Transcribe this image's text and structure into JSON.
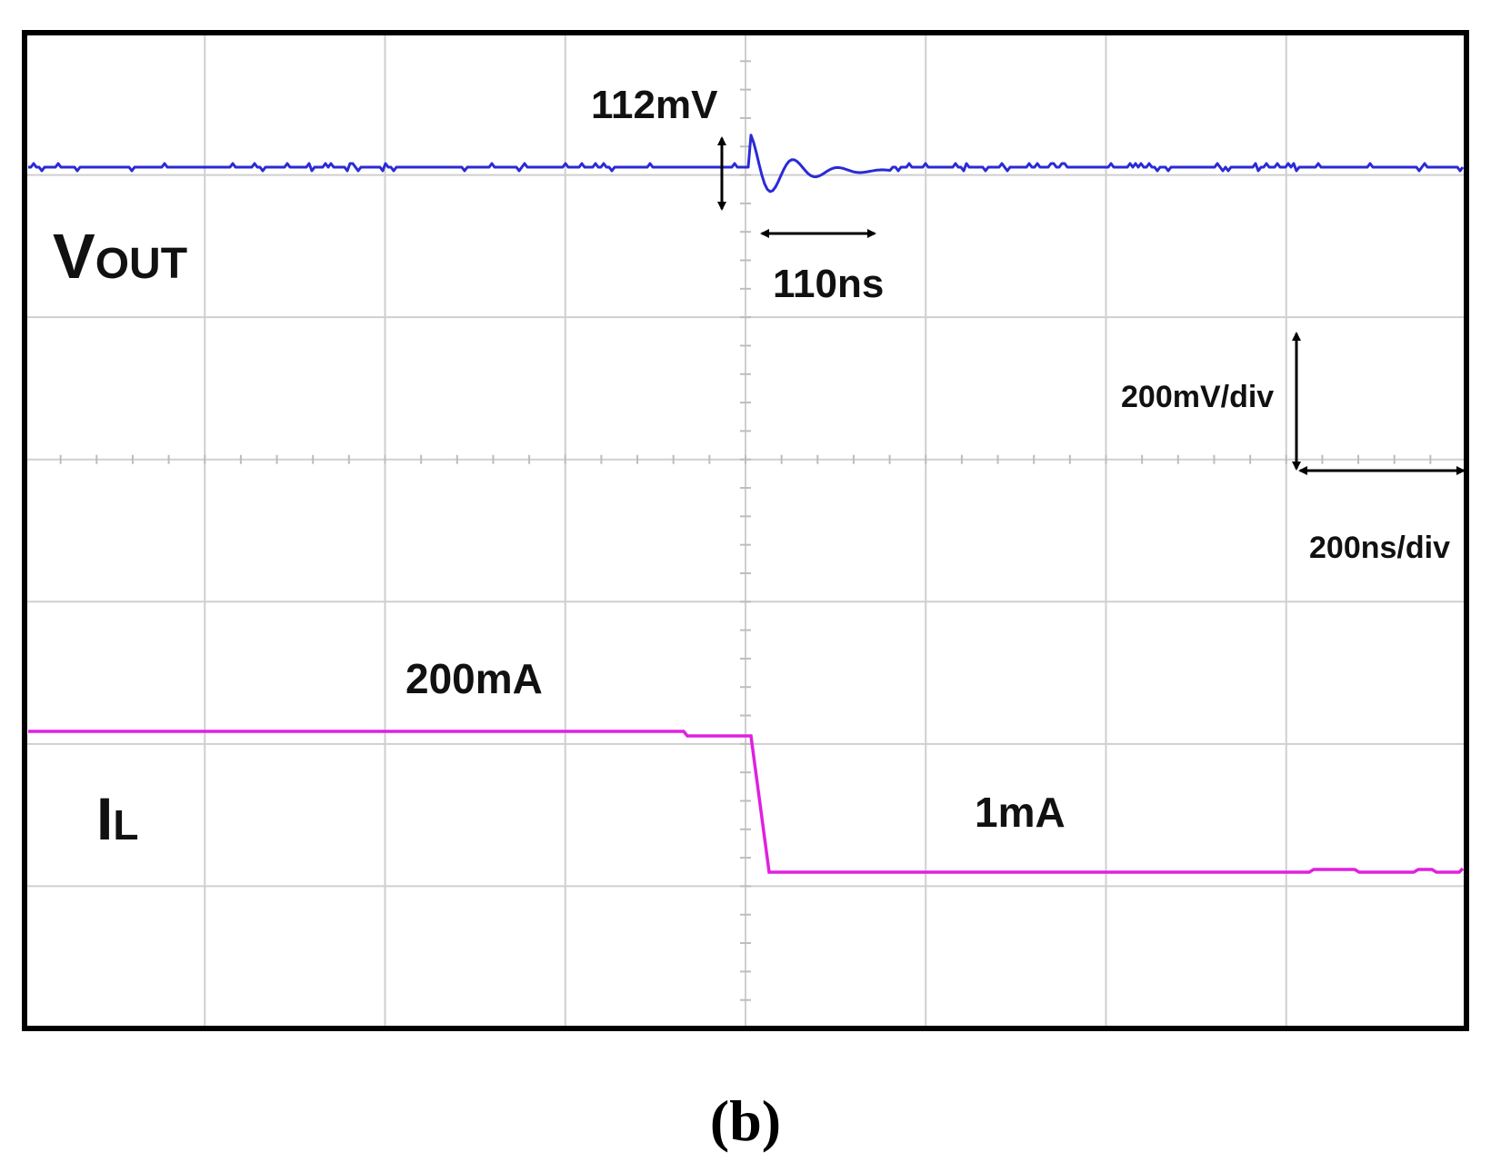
{
  "chart_data": {
    "type": "line",
    "traces": [
      {
        "name_main": "V",
        "name_sub": "OUT",
        "color": "#2a2ad6"
      },
      {
        "name_main": "I",
        "name_sub": "L",
        "color": "#e020e0"
      }
    ],
    "annotations": {
      "overshoot": "112mV",
      "settling": "110ns",
      "high_current": "200mA",
      "low_current": "1mA",
      "vertical_scale": "200mV/div",
      "horizontal_scale": "200ns/div"
    },
    "grid": true,
    "divisions": {
      "x": 8,
      "y": 7
    },
    "caption": "(b)"
  }
}
